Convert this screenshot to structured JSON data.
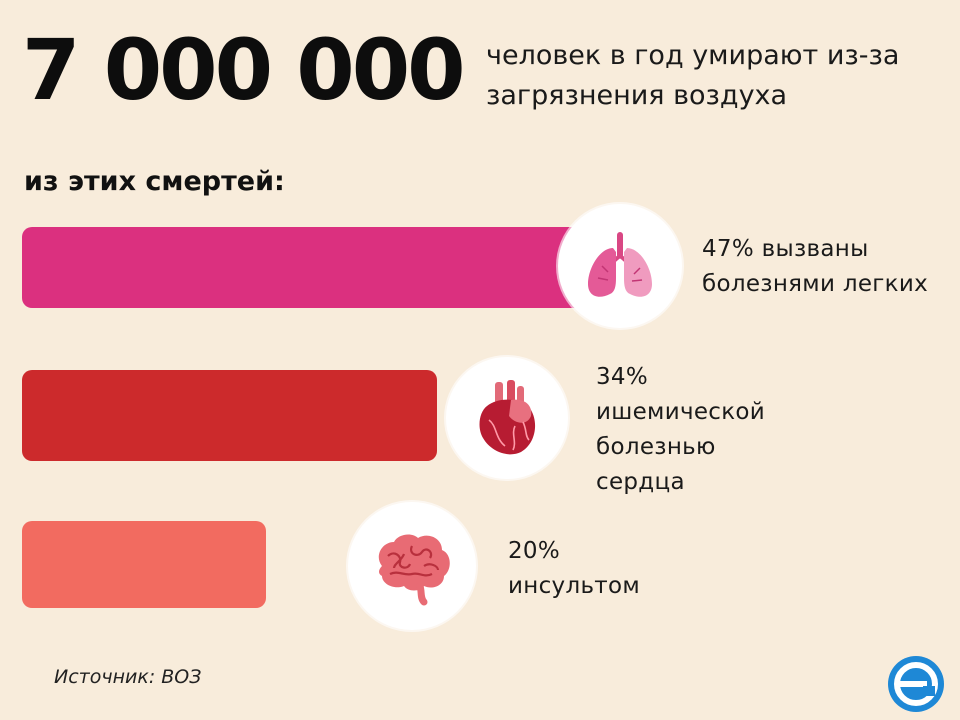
{
  "header": {
    "big_number": "7 000 000",
    "text": "человек в год умирают из-за загрязнения воздуха"
  },
  "subheading": "из этих смертей:",
  "chart_data": {
    "type": "bar",
    "orientation": "horizontal",
    "categories": [
      "болезнями легких",
      "ишемической болезнью сердца",
      "инсультом"
    ],
    "values": [
      47,
      34,
      20
    ],
    "unit": "%",
    "colors": [
      "#db307f",
      "#cc2a2c",
      "#f26b60"
    ],
    "icons": [
      "lungs-icon",
      "heart-icon",
      "brain-icon"
    ],
    "labels": [
      [
        "47% вызваны",
        "болезнями легких"
      ],
      [
        "34%",
        "ишемической",
        "болезнью",
        "сердца"
      ],
      [
        "20%",
        "инсультом"
      ]
    ]
  },
  "source": "Источник: ВОЗ",
  "logo": {
    "icon": "letter-e-logo-icon",
    "color": "#1e88d6"
  }
}
